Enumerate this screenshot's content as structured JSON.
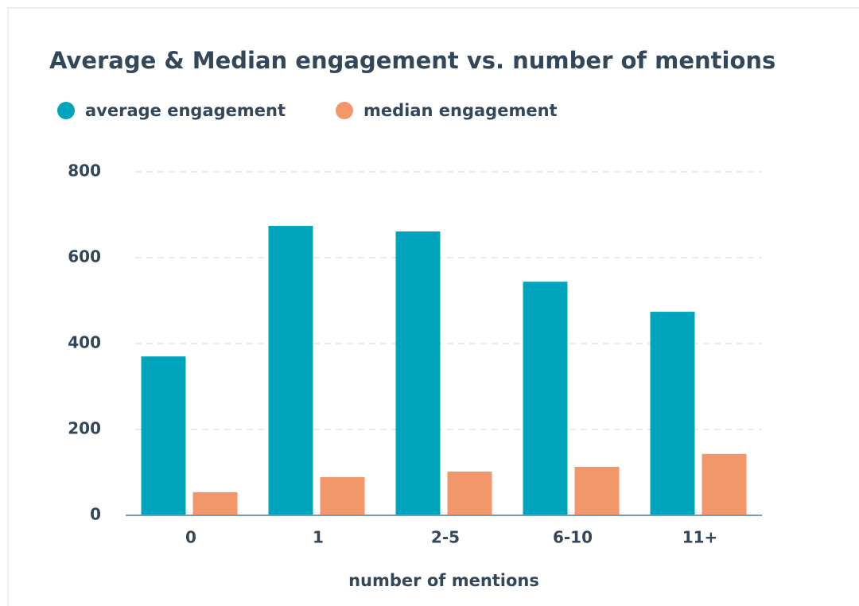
{
  "chart_data": {
    "type": "bar",
    "title": "Average & Median engagement vs. number of mentions",
    "x_label": "number of mentions",
    "categories": [
      "0",
      "1",
      "2-5",
      "6-10",
      "11+"
    ],
    "series": [
      {
        "name": "average engagement",
        "color": "#00a4bd",
        "values": [
          370,
          674,
          661,
          544,
          474
        ]
      },
      {
        "name": "median engagement",
        "color": "#f2976a",
        "values": [
          54,
          89,
          102,
          113,
          143
        ]
      }
    ],
    "ylim": [
      0,
      800
    ],
    "yticks": [
      0,
      200,
      400,
      600,
      800
    ],
    "grid": true,
    "legend": "top"
  }
}
